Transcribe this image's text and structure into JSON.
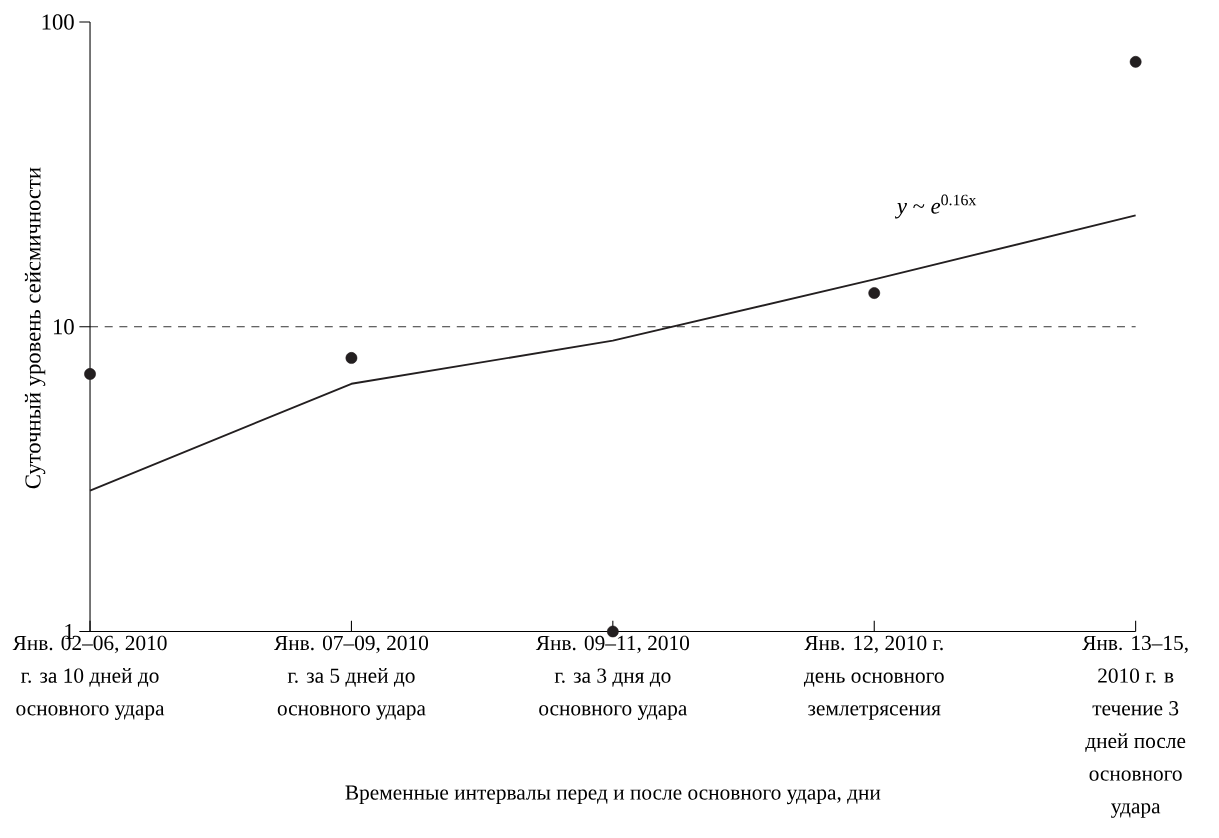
{
  "chart_data": {
    "type": "scatter",
    "xlabel": "Временные интервалы перед и после основного удара, дни",
    "ylabel": "Суточный уровень сейсмичности",
    "annotations": [
      "*y* ~ *e*$^{0.16x}$"
    ],
    "categories": [
      "Янв. 02–06, 2010 г. за 10 дней до основного удара",
      "Янв. 07–09, 2010 г. за 5 дней до основного удара",
      "Янв. 09–11, 2010 г. за 3 дня до основного удара",
      "Янв. 12, 2010 г. день основного землетрясения",
      "Янв. 13–15, 2010 г. в течение 3 дней после основного удара"
    ],
    "series": [
      {
        "marker": "circle",
        "color": "#231f20",
        "values": [
          7,
          7.9,
          1,
          12.9,
          74
        ]
      },
      {
        "type": "line",
        "marker": "none",
        "color": "#231f20",
        "values": [
          2.9,
          6.5,
          9,
          14.3,
          23.2
        ]
      }
    ],
    "log": "y",
    "ylim": [
      1,
      100
    ],
    "yticks": [
      1,
      10,
      100
    ],
    "ref_lines": [
      {
        "axis": "y",
        "value": 10,
        "line_style": "dashed"
      }
    ]
  }
}
